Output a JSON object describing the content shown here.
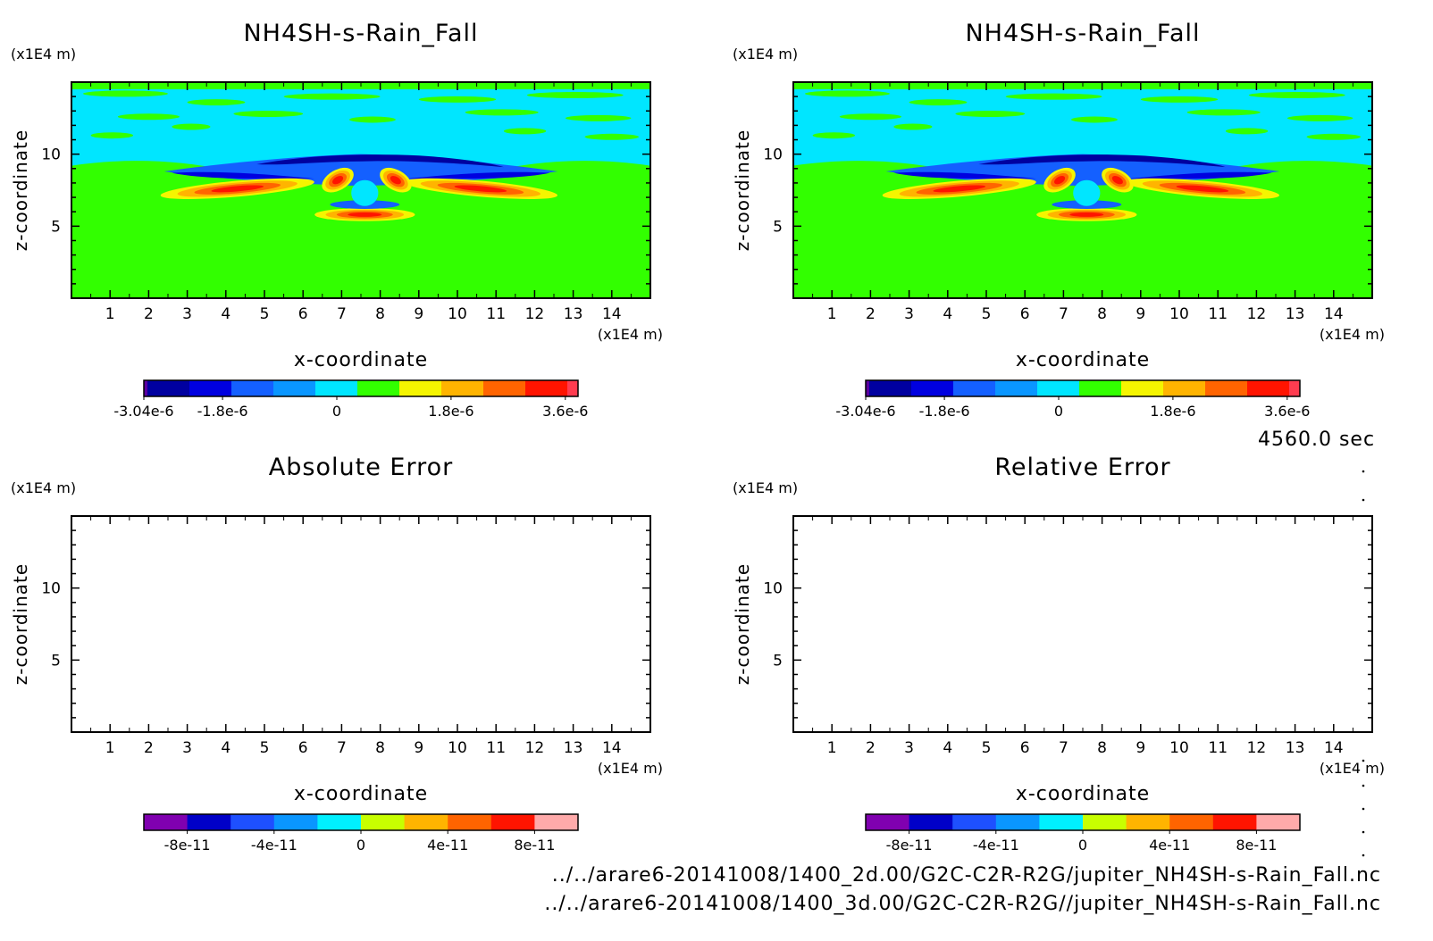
{
  "time_label": "4560.0 sec",
  "files": [
    "../../arare6-20141008/1400_2d.00/G2C-C2R-R2G/jupiter_NH4SH-s-Rain_Fall.nc",
    "../../arare6-20141008/1400_3d.00/G2C-C2R-R2G//jupiter_NH4SH-s-Rain_Fall.nc"
  ],
  "colors": {
    "field_scale": [
      "#0000a0",
      "#0000e0",
      "#1460ff",
      "#0a96ff",
      "#00e6ff",
      "#32ff00",
      "#f5f500",
      "#ffb400",
      "#ff6400",
      "#ff1400",
      "#ff3c50",
      "#ffaaaa"
    ],
    "error_scale": [
      "#8000b0",
      "#0000c8",
      "#1e50ff",
      "#0a96ff",
      "#00f0ff",
      "#c8ff00",
      "#ffb400",
      "#ff6400",
      "#ff1400",
      "#ffaaaa"
    ]
  },
  "chart_data": [
    {
      "type": "heatmap",
      "title": "NH4SH-s-Rain_Fall",
      "xlabel": "x-coordinate",
      "ylabel": "z-coordinate",
      "x_unit": "(x1E4 m)",
      "y_unit": "(x1E4 m)",
      "xlim": [
        0,
        15
      ],
      "ylim": [
        0,
        15
      ],
      "x_ticks": [
        "1",
        "2",
        "3",
        "4",
        "5",
        "6",
        "7",
        "8",
        "9",
        "10",
        "11",
        "12",
        "13",
        "14"
      ],
      "y_ticks": [
        "5",
        "10"
      ],
      "colorbar_ticks": [
        "-3.04e-6",
        "-1.8e-6",
        "0",
        "1.8e-6",
        "3.6e-6"
      ],
      "colorbar_range": [
        -3.04e-06,
        3.8e-06
      ]
    },
    {
      "type": "heatmap",
      "title": "NH4SH-s-Rain_Fall",
      "xlabel": "x-coordinate",
      "ylabel": "z-coordinate",
      "x_unit": "(x1E4 m)",
      "y_unit": "(x1E4 m)",
      "xlim": [
        0,
        15
      ],
      "ylim": [
        0,
        15
      ],
      "x_ticks": [
        "1",
        "2",
        "3",
        "4",
        "5",
        "6",
        "7",
        "8",
        "9",
        "10",
        "11",
        "12",
        "13",
        "14"
      ],
      "y_ticks": [
        "5",
        "10"
      ],
      "colorbar_ticks": [
        "-3.04e-6",
        "-1.8e-6",
        "0",
        "1.8e-6",
        "3.6e-6"
      ],
      "colorbar_range": [
        -3.04e-06,
        3.8e-06
      ]
    },
    {
      "type": "heatmap",
      "title": "Absolute Error",
      "xlabel": "x-coordinate",
      "ylabel": "z-coordinate",
      "x_unit": "(x1E4 m)",
      "y_unit": "(x1E4 m)",
      "xlim": [
        0,
        15
      ],
      "ylim": [
        0,
        15
      ],
      "x_ticks": [
        "1",
        "2",
        "3",
        "4",
        "5",
        "6",
        "7",
        "8",
        "9",
        "10",
        "11",
        "12",
        "13",
        "14"
      ],
      "y_ticks": [
        "5",
        "10"
      ],
      "colorbar_ticks": [
        "-8e-11",
        "-4e-11",
        "0",
        "4e-11",
        "8e-11"
      ],
      "colorbar_range": [
        -1e-10,
        1e-10
      ],
      "empty": true
    },
    {
      "type": "heatmap",
      "title": "Relative Error",
      "xlabel": "x-coordinate",
      "ylabel": "z-coordinate",
      "x_unit": "(x1E4 m)",
      "y_unit": "(x1E4 m)",
      "xlim": [
        0,
        15
      ],
      "ylim": [
        0,
        15
      ],
      "x_ticks": [
        "1",
        "2",
        "3",
        "4",
        "5",
        "6",
        "7",
        "8",
        "9",
        "10",
        "11",
        "12",
        "13",
        "14"
      ],
      "y_ticks": [
        "5",
        "10"
      ],
      "colorbar_ticks": [
        "-8e-11",
        "-4e-11",
        "0",
        "4e-11",
        "8e-11"
      ],
      "colorbar_range": [
        -1e-10,
        1e-10
      ],
      "empty": true
    }
  ]
}
